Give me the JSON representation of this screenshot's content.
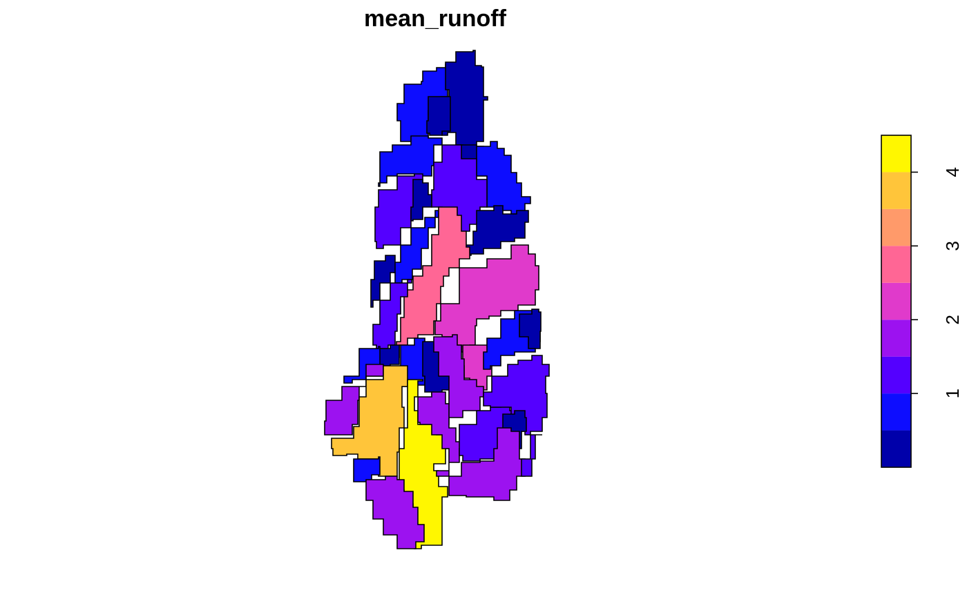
{
  "chart_data": {
    "type": "heatmap",
    "title": "mean_runoff",
    "legend": {
      "placement": "right",
      "orientation": "vertical",
      "range": [
        0,
        4.5
      ],
      "breaks": [
        0,
        0.5,
        1,
        1.5,
        2,
        2.5,
        3,
        3.5,
        4,
        4.5
      ],
      "colors": [
        "#0000AA",
        "#0D0DFF",
        "#5400FF",
        "#9C12F0",
        "#E03ACB",
        "#FF6695",
        "#FF9A6A",
        "#FFC53A",
        "#FFF700"
      ],
      "ticks": [
        1,
        2,
        3,
        4
      ],
      "tick_labels": [
        "1",
        "2",
        "3",
        "4"
      ]
    }
  }
}
